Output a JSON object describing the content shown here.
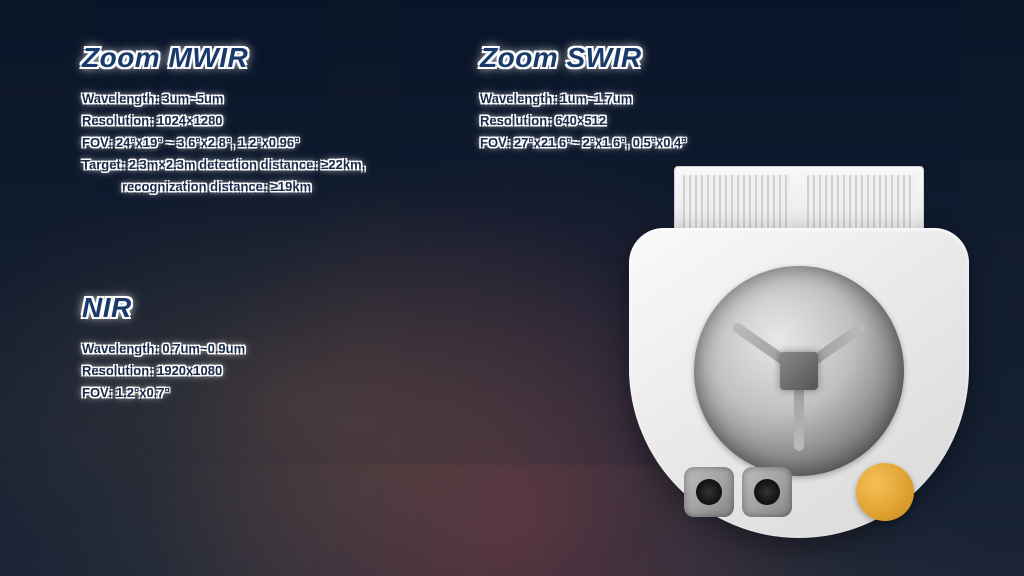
{
  "mwir": {
    "title": "Zoom MWIR",
    "wavelength": "Wavelength: 3um~5um",
    "resolution": "Resolution: 1024×1280",
    "fov": "FOV: 24°x19° ~ 3.6°x2.8°, 1.2°x0.96°",
    "target1": "Target: 2.3m×2.3m detection distance: ≥22km,",
    "target2": "recognization distance: ≥19km"
  },
  "swir": {
    "title": "Zoom SWIR",
    "wavelength": "Wavelength: 1um~1.7um",
    "resolution": "Resolution: 640×512",
    "fov": "FOV: 27°x21.6°~ 2°x1.6°, 0.5°x0.4°"
  },
  "nir": {
    "title": "NIR",
    "wavelength": "Wavelength: 0.7um~0.9um",
    "resolution": "Resolution: 1920x1080",
    "fov": "FOV: 1.2°x0.7°"
  },
  "colors": {
    "title_fill": "#1a3a6b",
    "text_fill": "#1a2a4a",
    "glow": "#ffffff",
    "device_body": "#f0f0f0",
    "sensor_orange": "#e0a030"
  }
}
